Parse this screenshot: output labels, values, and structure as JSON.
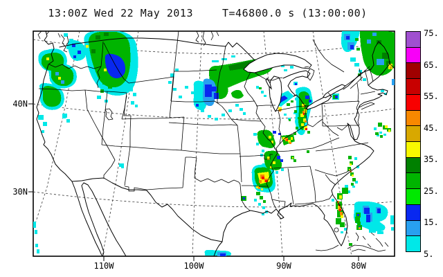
{
  "title": {
    "timestamp": "13:00Z Wed 22 May 2013",
    "model_time": "T=46800.0 s (13:00:00)"
  },
  "axes": {
    "lat": [
      {
        "label": "40N"
      },
      {
        "label": "30N"
      }
    ],
    "lon": [
      {
        "label": "110W"
      },
      {
        "label": "100W"
      },
      {
        "label": "90W"
      },
      {
        "label": "80W"
      }
    ]
  },
  "colorbar": {
    "labels": [
      "75.",
      "65.",
      "55.",
      "45.",
      "35.",
      "25.",
      "15.",
      "5."
    ],
    "colors_top_to_bottom": [
      "#A050D0",
      "#F800F8",
      "#A00000",
      "#C80000",
      "#F80000",
      "#F88800",
      "#D8A800",
      "#F8F800",
      "#008000",
      "#00B400",
      "#00E800",
      "#0828F0",
      "#28A0F0",
      "#00E8E8"
    ]
  },
  "chart_data": {
    "type": "heatmap",
    "title": "13:00Z Wed 22 May 2013  T=46800.0 s (13:00:00)",
    "legend_values": [
      75,
      65,
      55,
      45,
      35,
      25,
      15,
      5
    ],
    "lat_ticks": [
      "40N",
      "30N"
    ],
    "lon_ticks": [
      "110W",
      "100W",
      "90W",
      "80W"
    ],
    "legend_position": "right"
  }
}
